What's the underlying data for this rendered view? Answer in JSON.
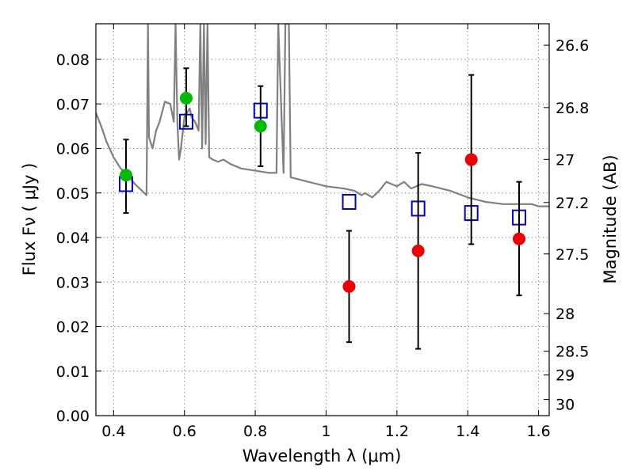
{
  "chart_data": {
    "type": "scatter",
    "xlabel": "Wavelength  λ (μm)",
    "ylabel": "Flux  Fν  ( μJy )",
    "y2label": "Magnitude (AB)",
    "xlim": [
      0.35,
      1.63
    ],
    "ylim": [
      0.0,
      0.088
    ],
    "grid": true,
    "x_ticks": [
      0.4,
      0.6,
      0.8,
      1.0,
      1.2,
      1.4,
      1.6
    ],
    "x_tick_labels": [
      "0.4",
      "0.6",
      "0.8",
      "1",
      "1.2",
      "1.4",
      "1.6"
    ],
    "y_ticks": [
      0.0,
      0.01,
      0.02,
      0.03,
      0.04,
      0.05,
      0.06,
      0.07,
      0.08
    ],
    "y_tick_labels": [
      "0.00",
      "0.01",
      "0.02",
      "0.03",
      "0.04",
      "0.05",
      "0.06",
      "0.07",
      "0.08"
    ],
    "y2_ticks": [
      {
        "label": "26.6",
        "mag": 26.6
      },
      {
        "label": "26.8",
        "mag": 26.8
      },
      {
        "label": "27",
        "mag": 27.0
      },
      {
        "label": "27.2",
        "mag": 27.2
      },
      {
        "label": "27.5",
        "mag": 27.5
      },
      {
        "label": "28",
        "mag": 28.0
      },
      {
        "label": "28.5",
        "mag": 28.5
      },
      {
        "label": "29",
        "mag": 29.0
      },
      {
        "label": "30",
        "mag": 30.0
      }
    ],
    "series": [
      {
        "kind": "line",
        "color": "#808080",
        "points": [
          [
            0.35,
            0.068
          ],
          [
            0.365,
            0.065
          ],
          [
            0.38,
            0.0615
          ],
          [
            0.4,
            0.058
          ],
          [
            0.42,
            0.0555
          ],
          [
            0.44,
            0.054
          ],
          [
            0.46,
            0.052
          ],
          [
            0.48,
            0.0505
          ],
          [
            0.493,
            0.0495
          ],
          [
            0.497,
            0.088
          ],
          [
            0.5,
            0.0625
          ],
          [
            0.51,
            0.06
          ],
          [
            0.52,
            0.064
          ],
          [
            0.53,
            0.066
          ],
          [
            0.545,
            0.0705
          ],
          [
            0.56,
            0.07
          ],
          [
            0.57,
            0.066
          ],
          [
            0.575,
            0.088
          ],
          [
            0.58,
            0.066
          ],
          [
            0.585,
            0.0575
          ],
          [
            0.59,
            0.06
          ],
          [
            0.6,
            0.067
          ],
          [
            0.615,
            0.069
          ],
          [
            0.62,
            0.067
          ],
          [
            0.63,
            0.066
          ],
          [
            0.64,
            0.064
          ],
          [
            0.645,
            0.088
          ],
          [
            0.65,
            0.06
          ],
          [
            0.655,
            0.088
          ],
          [
            0.66,
            0.061
          ],
          [
            0.665,
            0.088
          ],
          [
            0.67,
            0.058
          ],
          [
            0.68,
            0.0575
          ],
          [
            0.695,
            0.057
          ],
          [
            0.71,
            0.0575
          ],
          [
            0.73,
            0.0565
          ],
          [
            0.76,
            0.0555
          ],
          [
            0.8,
            0.055
          ],
          [
            0.84,
            0.0545
          ],
          [
            0.86,
            0.0545
          ],
          [
            0.865,
            0.088
          ],
          [
            0.88,
            0.0545
          ],
          [
            0.885,
            0.088
          ],
          [
            0.895,
            0.088
          ],
          [
            0.9,
            0.0535
          ],
          [
            0.95,
            0.0525
          ],
          [
            1.0,
            0.0515
          ],
          [
            1.05,
            0.051
          ],
          [
            1.08,
            0.0505
          ],
          [
            1.1,
            0.0495
          ],
          [
            1.11,
            0.05
          ],
          [
            1.13,
            0.049
          ],
          [
            1.15,
            0.0505
          ],
          [
            1.17,
            0.0525
          ],
          [
            1.185,
            0.052
          ],
          [
            1.2,
            0.0515
          ],
          [
            1.22,
            0.0525
          ],
          [
            1.24,
            0.051
          ],
          [
            1.27,
            0.052
          ],
          [
            1.3,
            0.0515
          ],
          [
            1.35,
            0.0505
          ],
          [
            1.4,
            0.049
          ],
          [
            1.45,
            0.048
          ],
          [
            1.5,
            0.0475
          ],
          [
            1.55,
            0.0475
          ],
          [
            1.58,
            0.0475
          ],
          [
            1.6,
            0.047
          ],
          [
            1.63,
            0.047
          ]
        ]
      },
      {
        "kind": "open-square",
        "color": "#0000cc",
        "points": [
          {
            "x": 0.435,
            "y": 0.052
          },
          {
            "x": 0.605,
            "y": 0.066
          },
          {
            "x": 0.815,
            "y": 0.0685
          },
          {
            "x": 1.065,
            "y": 0.048
          },
          {
            "x": 1.26,
            "y": 0.0465
          },
          {
            "x": 1.41,
            "y": 0.0455
          },
          {
            "x": 1.545,
            "y": 0.0445
          }
        ]
      },
      {
        "kind": "filled-circle",
        "color": "#00bb00",
        "points": [
          {
            "x": 0.435,
            "y": 0.054,
            "err": [
              0.0455,
              0.062
            ]
          },
          {
            "x": 0.605,
            "y": 0.0713,
            "err": [
              0.065,
              0.078
            ]
          },
          {
            "x": 0.815,
            "y": 0.065,
            "err": [
              0.056,
              0.074
            ]
          }
        ]
      },
      {
        "kind": "filled-circle",
        "color": "#ee0000",
        "points": [
          {
            "x": 1.065,
            "y": 0.029,
            "err": [
              0.0165,
              0.0415
            ]
          },
          {
            "x": 1.26,
            "y": 0.037,
            "err": [
              0.015,
              0.059
            ]
          },
          {
            "x": 1.41,
            "y": 0.0575,
            "err": [
              0.0385,
              0.0765
            ]
          },
          {
            "x": 1.545,
            "y": 0.0397,
            "err": [
              0.027,
              0.0525
            ]
          }
        ]
      }
    ]
  }
}
